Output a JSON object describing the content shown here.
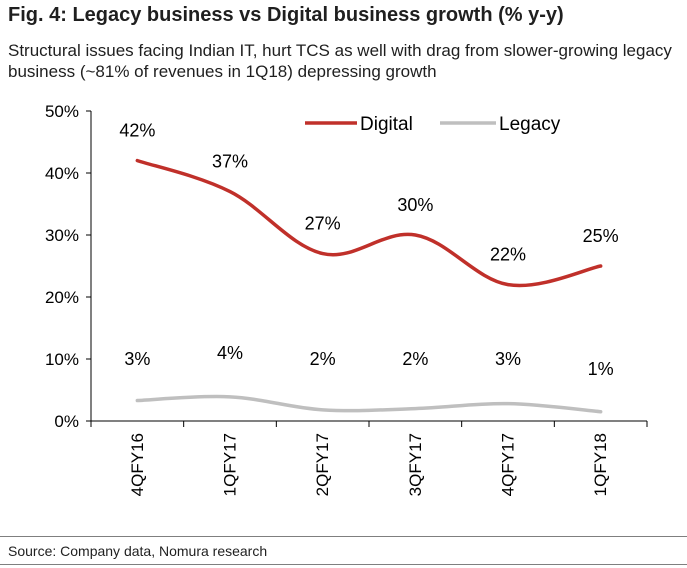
{
  "header": {
    "title": "Fig. 4: Legacy business vs Digital business growth (% y-y)",
    "subtitle": "Structural issues facing Indian IT, hurt TCS as well with drag from slower-growing legacy business (~81% of revenues in 1Q18) depressing growth"
  },
  "footer": {
    "source": "Source: Company data, Nomura research"
  },
  "chart_data": {
    "type": "line",
    "title": "",
    "xlabel": "",
    "ylabel": "",
    "categories": [
      "4QFY16",
      "1QFY17",
      "2QFY17",
      "3QFY17",
      "4QFY17",
      "1QFY18"
    ],
    "ylim": [
      0,
      50
    ],
    "yticks": [
      0,
      10,
      20,
      30,
      40,
      50
    ],
    "ytick_labels": [
      "0%",
      "10%",
      "20%",
      "30%",
      "40%",
      "50%"
    ],
    "grid": false,
    "legend_position": "top-center",
    "series": [
      {
        "name": "Digital",
        "color": "#c0302a",
        "values": [
          42,
          37,
          27,
          30,
          22,
          25
        ],
        "labels": [
          "42%",
          "37%",
          "27%",
          "30%",
          "22%",
          "25%"
        ]
      },
      {
        "name": "Legacy",
        "color": "#bfbfbf",
        "values": [
          3,
          4,
          2,
          2,
          3,
          1
        ],
        "plot_values": [
          3.3,
          3.9,
          1.8,
          2.0,
          2.8,
          1.5
        ],
        "labels": [
          "3%",
          "4%",
          "2%",
          "2%",
          "3%",
          "1%"
        ]
      }
    ]
  }
}
